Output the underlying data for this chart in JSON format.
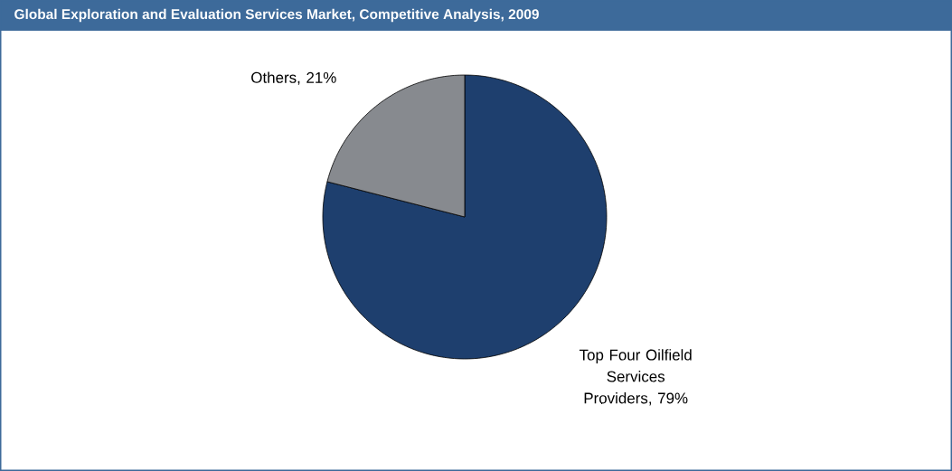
{
  "chart_data": {
    "type": "pie",
    "title": "Global Exploration and Evaluation Services Market, Competitive Analysis, 2009",
    "categories": [
      "Top Four Oilfield Services Providers",
      "Others"
    ],
    "values": [
      79,
      21
    ],
    "value_labels": [
      ", 79%",
      ", 21%"
    ],
    "colors": [
      "#1e3f6e",
      "#878a8f"
    ]
  }
}
